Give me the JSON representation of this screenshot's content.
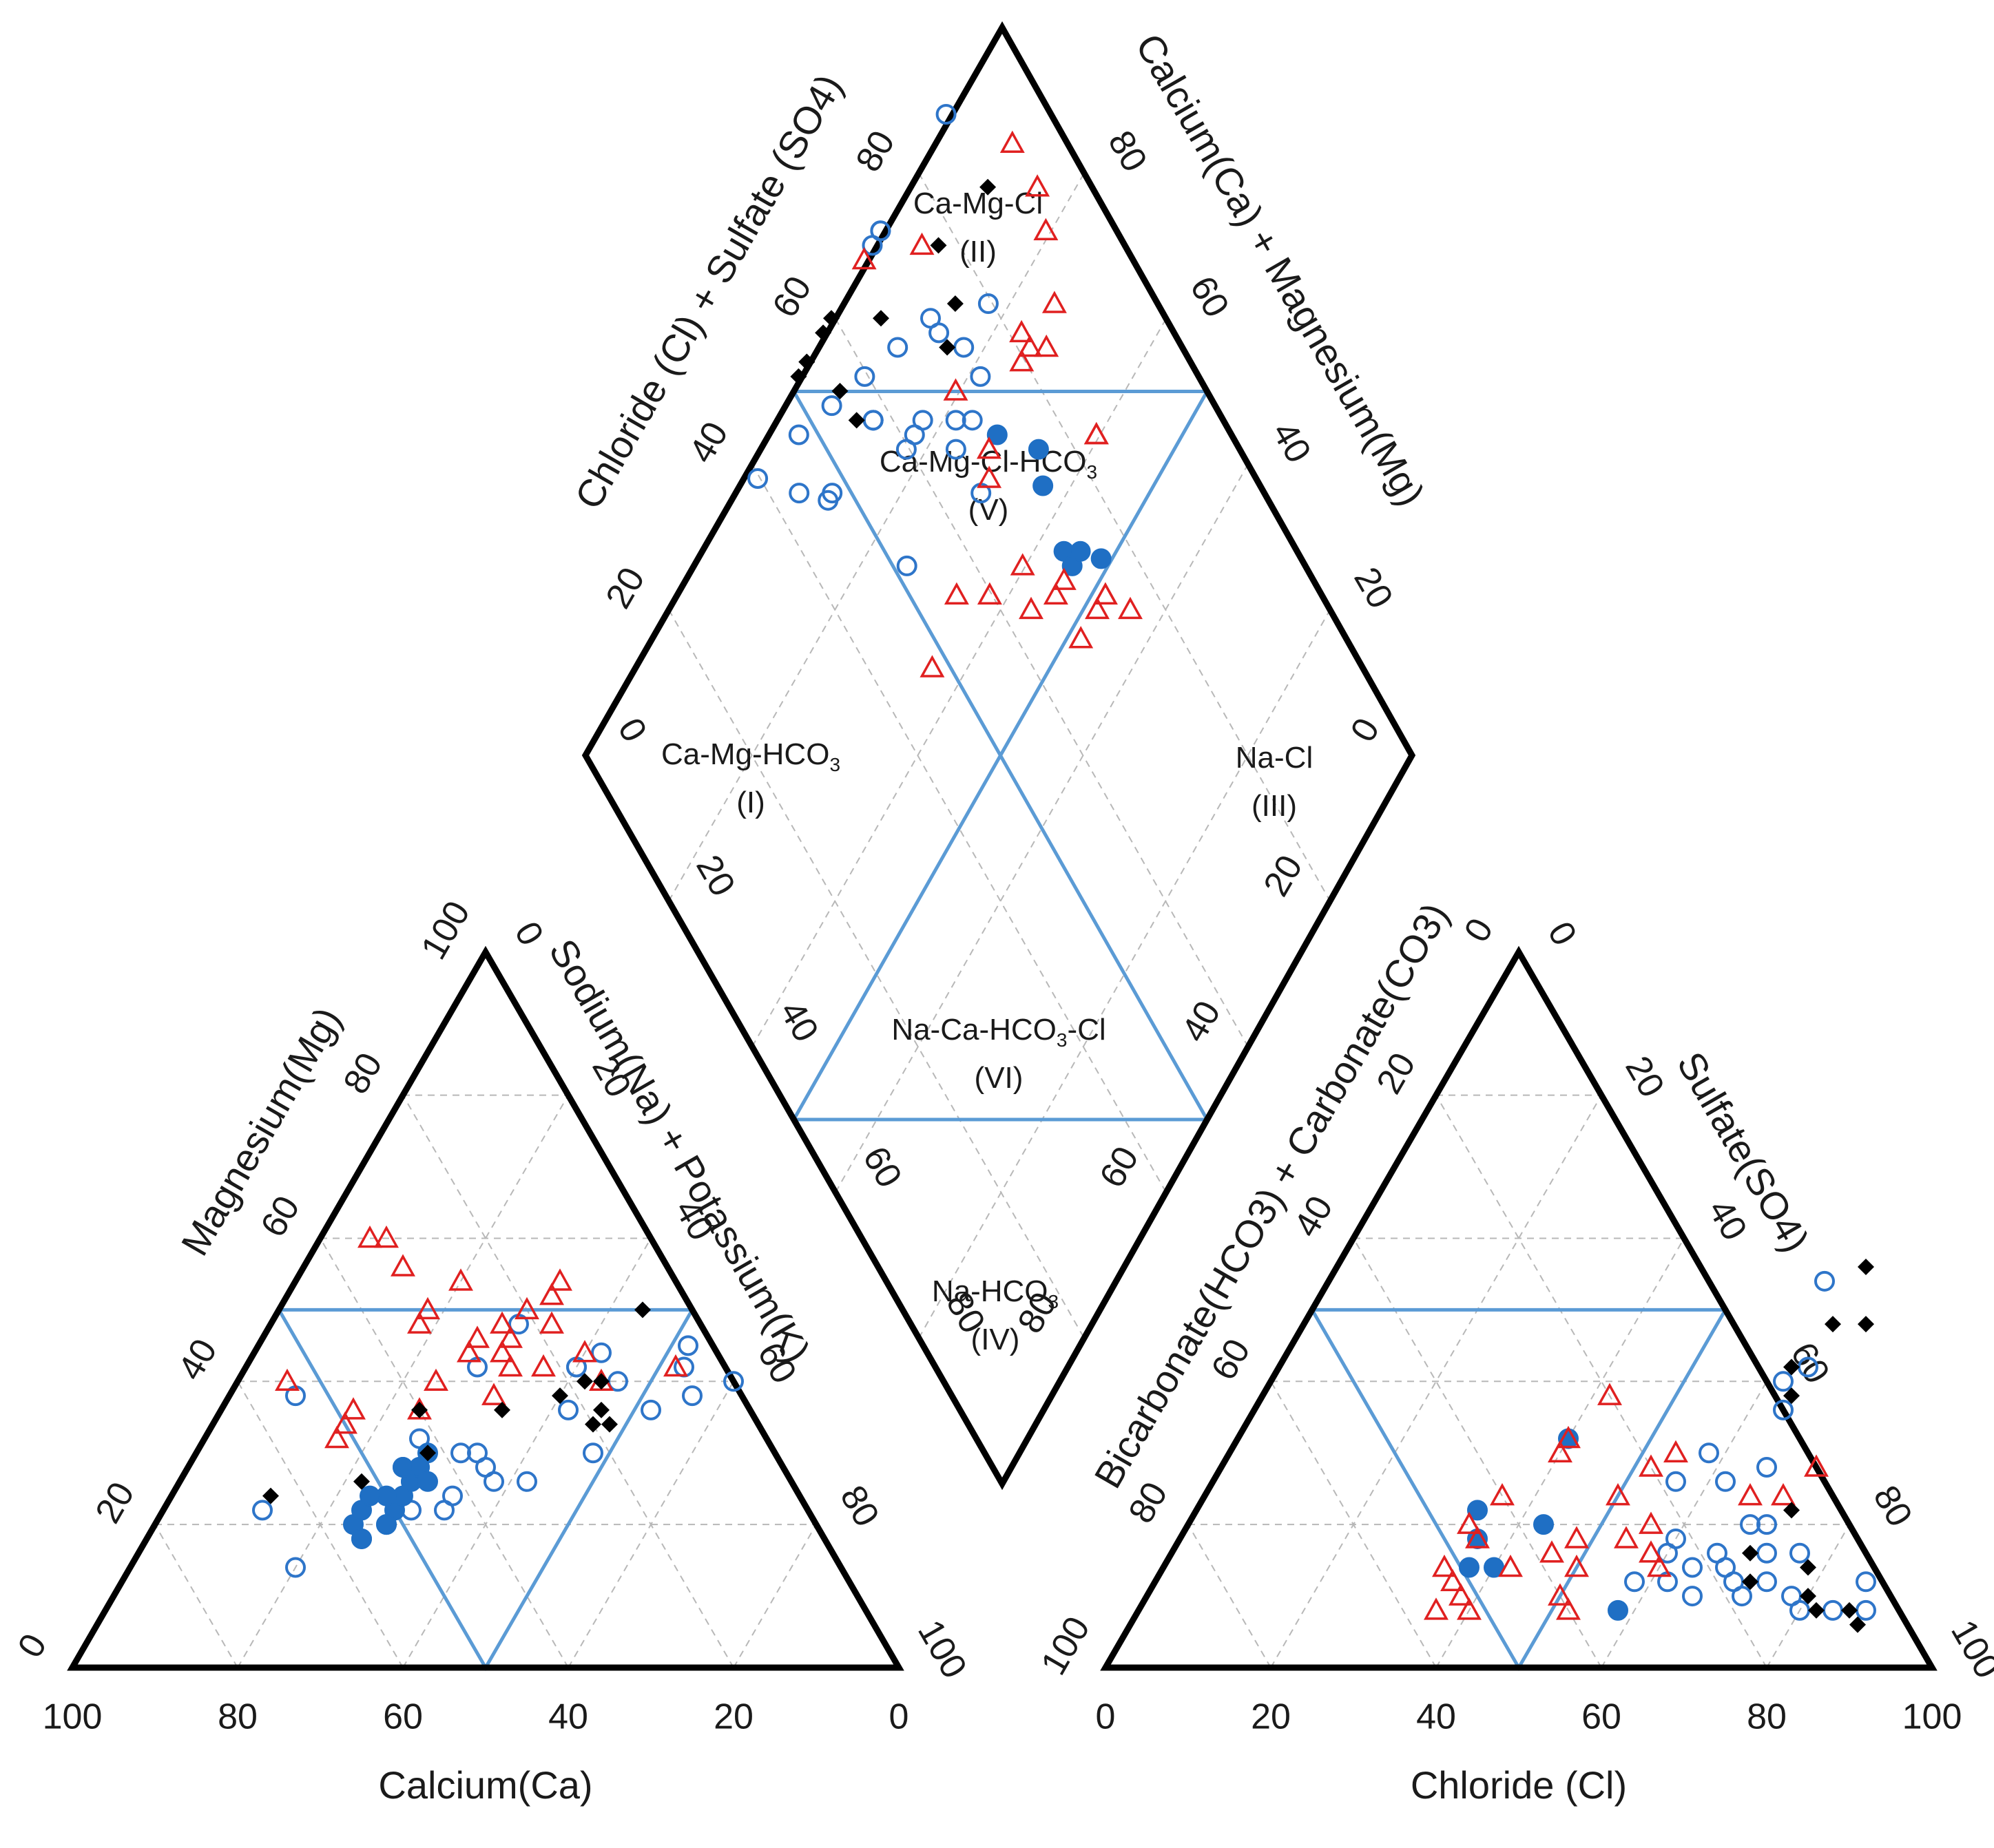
{
  "chart_data": {
    "type": "scatter",
    "chart_kind": "Piper trilinear diagram",
    "colors": {
      "frame": "#000000",
      "grid": "#b8b8b8",
      "zone_lines": "#5b9bd5",
      "group_open_circle": "#2e75c9",
      "group_filled_circle": "#1f6fc4",
      "group_triangle": "#e02020",
      "group_diamond": "#000000"
    },
    "cation_triangle": {
      "bottom_axis_label": "Calcium(Ca)",
      "left_axis_label": "Magnesium(Mg)",
      "right_axis_label": "Sodium(Na) + Potassium(K)",
      "bottom_ticks": [
        "100",
        "80",
        "60",
        "40",
        "20",
        "0"
      ],
      "left_ticks": [
        "0",
        "20",
        "40",
        "60",
        "80",
        "100"
      ],
      "right_ticks": [
        "0",
        "20",
        "40",
        "60",
        "80",
        "100"
      ]
    },
    "anion_triangle": {
      "bottom_axis_label": "Chloride (Cl)",
      "left_axis_label": "Bicarbonate(HCO3) + Carbonate(CO3)",
      "right_axis_label": "Sulfate(SO4)",
      "bottom_ticks": [
        "0",
        "20",
        "40",
        "60",
        "80",
        "100"
      ],
      "left_ticks": [
        "100",
        "80",
        "60",
        "40",
        "20",
        "0"
      ],
      "right_ticks": [
        "0",
        "20",
        "40",
        "60",
        "80",
        "100"
      ]
    },
    "diamond": {
      "upper_left_axis_label": "Chloride (Cl) + Sulfate (SO4)",
      "upper_right_axis_label": "Calcium(Ca) + Magnesium(Mg)",
      "upper_left_ticks": [
        "20",
        "40",
        "60",
        "80"
      ],
      "upper_right_ticks": [
        "80",
        "60",
        "40",
        "20"
      ],
      "lower_left_ticks": [
        "0",
        "20",
        "40",
        "60",
        "80"
      ],
      "lower_right_ticks": [
        "0",
        "20",
        "40",
        "60",
        "80"
      ]
    },
    "zones": [
      {
        "name": "Ca-Mg-HCO",
        "sub": "3",
        "rest": "",
        "numeral": "(I)"
      },
      {
        "name": "Ca-Mg-Cl",
        "sub": "",
        "rest": "",
        "numeral": "(II)"
      },
      {
        "name": "Na-Cl",
        "sub": "",
        "rest": "",
        "numeral": "(III)"
      },
      {
        "name": "Na-HCO",
        "sub": "3",
        "rest": "",
        "numeral": "(IV)"
      },
      {
        "name": "Ca-Mg-Cl-HCO",
        "sub": "3",
        "rest": "",
        "numeral": "(V)"
      },
      {
        "name": "Na-Ca-HCO",
        "sub": "3",
        "rest": "-Cl",
        "numeral": "(VI)"
      }
    ],
    "series": [
      {
        "name": "open-circle",
        "marker": "circle-open",
        "cation_points": [
          [
            28,
            28
          ],
          [
            22,
            12
          ],
          [
            42,
            28
          ],
          [
            48,
            30
          ],
          [
            44,
            42
          ],
          [
            42,
            40
          ],
          [
            40,
            46
          ],
          [
            45,
            52
          ],
          [
            42,
            53
          ],
          [
            24,
            34
          ],
          [
            30,
            32
          ],
          [
            26,
            38
          ],
          [
            30,
            34
          ],
          [
            28,
            36
          ],
          [
            20,
            28
          ],
          [
            32,
            26
          ],
          [
            22,
            34
          ],
          [
            30,
            48
          ],
          [
            28,
            26
          ],
          [
            26,
            28
          ],
          [
            42,
            40
          ],
          [
            26,
            42
          ],
          [
            36,
            42
          ],
          [
            40,
            60
          ],
          [
            36,
            52
          ],
          [
            38,
            56
          ],
          [
            22,
            30
          ],
          [
            14,
            20
          ],
          [
            38,
            8
          ]
        ],
        "anion_points": [
          [
            60,
            54
          ],
          [
            64,
            42
          ],
          [
            62,
            40
          ],
          [
            64,
            36
          ],
          [
            58,
            30
          ],
          [
            56,
            26
          ],
          [
            66,
            28
          ],
          [
            62,
            26
          ],
          [
            68,
            20
          ],
          [
            70,
            20
          ],
          [
            60,
            18
          ],
          [
            66,
            16
          ],
          [
            60,
            16
          ],
          [
            68,
            14
          ],
          [
            72,
            16
          ],
          [
            64,
            14
          ],
          [
            58,
            12
          ],
          [
            62,
            12
          ],
          [
            70,
            12
          ],
          [
            74,
            12
          ],
          [
            76,
            16
          ],
          [
            78,
            10
          ],
          [
            80,
            8
          ],
          [
            86,
            12
          ],
          [
            88,
            8
          ],
          [
            84,
            8
          ],
          [
            66,
            10
          ],
          [
            72,
            10
          ]
        ]
      },
      {
        "name": "filled-circle",
        "marker": "circle-filled",
        "cation_points": [
          [
            22,
            28
          ],
          [
            24,
            28
          ],
          [
            26,
            28
          ],
          [
            20,
            24
          ],
          [
            18,
            26
          ],
          [
            24,
            26
          ],
          [
            22,
            24
          ],
          [
            28,
            28
          ],
          [
            30,
            28
          ],
          [
            26,
            30
          ],
          [
            20,
            28
          ],
          [
            28,
            26
          ],
          [
            18,
            26
          ],
          [
            24,
            24
          ]
        ],
        "anion_points": [
          [
            40,
            32
          ],
          [
            34,
            22
          ],
          [
            36,
            18
          ],
          [
            37,
            14
          ],
          [
            40,
            14
          ],
          [
            43,
            20
          ],
          [
            58,
            8
          ]
        ]
      },
      {
        "name": "triangle",
        "marker": "triangle-open",
        "cation_points": [
          [
            46,
            30
          ],
          [
            44,
            30
          ],
          [
            42,
            32
          ],
          [
            48,
            34
          ],
          [
            50,
            30
          ],
          [
            52,
            32
          ],
          [
            48,
            28
          ],
          [
            46,
            26
          ],
          [
            44,
            26
          ],
          [
            40,
            24
          ],
          [
            38,
            32
          ],
          [
            42,
            36
          ],
          [
            44,
            40
          ],
          [
            40,
            44
          ],
          [
            42,
            52
          ],
          [
            36,
            16
          ],
          [
            34,
            16
          ],
          [
            32,
            16
          ],
          [
            50,
            18
          ],
          [
            54,
            20
          ],
          [
            48,
            18
          ],
          [
            56,
            12
          ],
          [
            60,
            8
          ],
          [
            60,
            6
          ],
          [
            40,
            6
          ],
          [
            36,
            24
          ],
          [
            54,
            32
          ]
        ],
        "anion_points": [
          [
            40,
            32
          ],
          [
            42,
            38
          ],
          [
            40,
            30
          ],
          [
            36,
            24
          ],
          [
            34,
            20
          ],
          [
            36,
            18
          ],
          [
            34,
            14
          ],
          [
            36,
            12
          ],
          [
            38,
            10
          ],
          [
            36,
            8
          ],
          [
            40,
            8
          ],
          [
            42,
            14
          ],
          [
            46,
            16
          ],
          [
            48,
            18
          ],
          [
            50,
            14
          ],
          [
            50,
            10
          ],
          [
            52,
            8
          ],
          [
            54,
            18
          ],
          [
            56,
            20
          ],
          [
            58,
            16
          ],
          [
            60,
            14
          ],
          [
            50,
            24
          ],
          [
            52,
            28
          ],
          [
            54,
            30
          ],
          [
            66,
            24
          ],
          [
            70,
            24
          ],
          [
            72,
            28
          ]
        ]
      },
      {
        "name": "diamond",
        "marker": "diamond-filled",
        "cation_points": [
          [
            36,
            46
          ],
          [
            34,
            48
          ],
          [
            34,
            46
          ],
          [
            38,
            40
          ],
          [
            40,
            42
          ],
          [
            50,
            44
          ],
          [
            36,
            24
          ],
          [
            30,
            28
          ],
          [
            26,
            22
          ],
          [
            24,
            12
          ],
          [
            40,
            44
          ],
          [
            36,
            34
          ]
        ],
        "anion_points": [
          [
            64,
            56
          ],
          [
            64,
            48
          ],
          [
            68,
            48
          ],
          [
            62,
            42
          ],
          [
            64,
            38
          ],
          [
            72,
            22
          ],
          [
            70,
            16
          ],
          [
            72,
            12
          ],
          [
            78,
            14
          ],
          [
            80,
            10
          ],
          [
            82,
            8
          ],
          [
            86,
            8
          ],
          [
            88,
            6
          ]
        ]
      }
    ]
  }
}
